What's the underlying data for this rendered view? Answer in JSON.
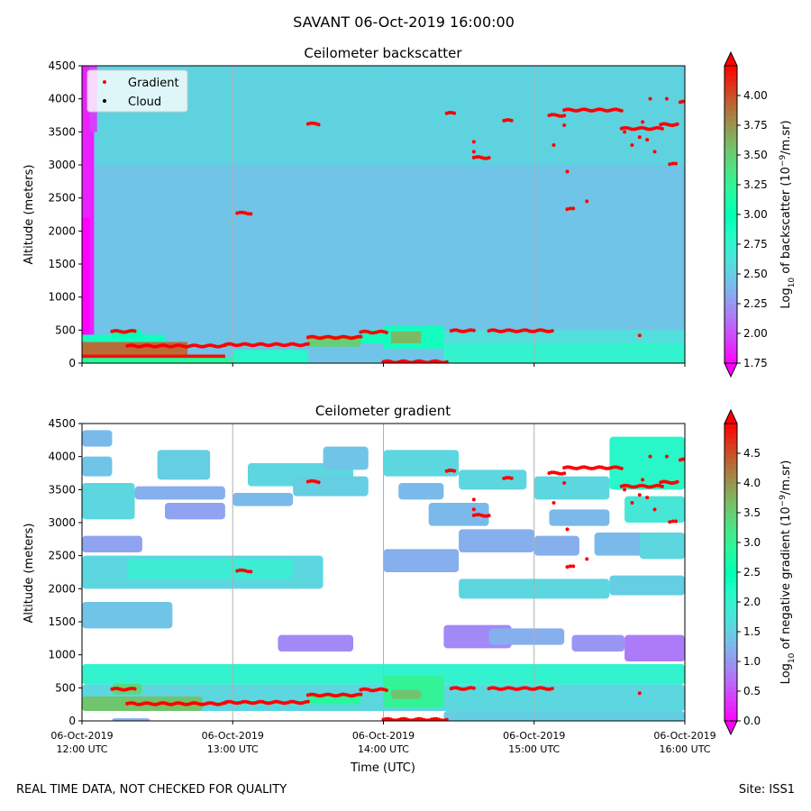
{
  "title": "SAVANT 06-Oct-2019 16:00:00",
  "footer": {
    "left": "REAL TIME DATA, NOT CHECKED FOR QUALITY",
    "right": "Site: ISS1"
  },
  "xlabel": "Time (UTC)",
  "x_ticks": [
    {
      "date": "06-Oct-2019",
      "time": "12:00 UTC",
      "hour": 12
    },
    {
      "date": "06-Oct-2019",
      "time": "13:00 UTC",
      "hour": 13
    },
    {
      "date": "06-Oct-2019",
      "time": "14:00 UTC",
      "hour": 14
    },
    {
      "date": "06-Oct-2019",
      "time": "15:00 UTC",
      "hour": 15
    },
    {
      "date": "06-Oct-2019",
      "time": "16:00 UTC",
      "hour": 16
    }
  ],
  "legend": {
    "placement": "upper-left",
    "entries": [
      {
        "label": "Gradient",
        "color": "#ff0000"
      },
      {
        "label": "Cloud",
        "color": "#000000"
      }
    ]
  },
  "chart_data": [
    {
      "type": "heatmap",
      "title": "Ceilometer backscatter",
      "ylabel": "Altitude (meters)",
      "xlim": [
        12,
        16
      ],
      "ylim": [
        0,
        4500
      ],
      "y_ticks": [
        0,
        500,
        1000,
        1500,
        2000,
        2500,
        3000,
        3500,
        4000,
        4500
      ],
      "grid": "vertical",
      "colorbar": {
        "label_prefix": "Log",
        "label_sub": "10",
        "label_mid": " of backscatter (10",
        "label_exp": "−9",
        "label_suffix": "/m.sr)",
        "range": [
          1.75,
          4.25
        ],
        "ticks": [
          "1.75",
          "2.00",
          "2.25",
          "2.50",
          "2.75",
          "3.00",
          "3.25",
          "3.50",
          "3.75",
          "4.00"
        ],
        "colormap": "rainbow"
      },
      "field": {
        "background_value": 2.45,
        "upper_value": 2.6,
        "blobs": [
          {
            "t0": 12.0,
            "t1": 12.08,
            "h0": 0,
            "h1": 4500,
            "v": 1.85
          },
          {
            "t0": 12.0,
            "t1": 12.05,
            "h0": 0,
            "h1": 2200,
            "v": 1.75
          },
          {
            "t0": 12.05,
            "t1": 12.1,
            "h0": 3500,
            "h1": 4500,
            "v": 1.95
          },
          {
            "t0": 12.0,
            "t1": 12.95,
            "h0": 0,
            "h1": 130,
            "v": 4.2
          },
          {
            "t0": 12.0,
            "t1": 12.7,
            "h0": 130,
            "h1": 320,
            "v": 3.9
          },
          {
            "t0": 12.0,
            "t1": 12.55,
            "h0": 320,
            "h1": 430,
            "v": 2.9
          },
          {
            "t0": 12.2,
            "t1": 12.4,
            "h0": 360,
            "h1": 500,
            "v": 2.95
          },
          {
            "t0": 12.0,
            "t1": 13.3,
            "h0": 0,
            "h1": 80,
            "v": 3.2
          },
          {
            "t0": 13.0,
            "t1": 13.5,
            "h0": 0,
            "h1": 200,
            "v": 2.8
          },
          {
            "t0": 13.5,
            "t1": 13.85,
            "h0": 250,
            "h1": 420,
            "v": 3.5
          },
          {
            "t0": 13.85,
            "t1": 14.0,
            "h0": 300,
            "h1": 500,
            "v": 2.9
          },
          {
            "t0": 14.0,
            "t1": 14.4,
            "h0": 220,
            "h1": 560,
            "v": 2.9
          },
          {
            "t0": 14.05,
            "t1": 14.25,
            "h0": 300,
            "h1": 480,
            "v": 3.6
          },
          {
            "t0": 14.4,
            "t1": 16.0,
            "h0": 0,
            "h1": 300,
            "v": 2.75
          },
          {
            "t0": 14.4,
            "t1": 16.0,
            "h0": 300,
            "h1": 500,
            "v": 2.6
          }
        ]
      },
      "gradient_points": [
        {
          "t": [
            12.2,
            12.35
          ],
          "h": 480
        },
        {
          "t": [
            12.3,
            12.95
          ],
          "h": 260
        },
        {
          "t": [
            12.95,
            13.5
          ],
          "h": 280
        },
        {
          "t": [
            13.5,
            13.85
          ],
          "h": 390
        },
        {
          "t": [
            13.85,
            14.02
          ],
          "h": 470
        },
        {
          "t": [
            14.0,
            14.42
          ],
          "h": 20
        },
        {
          "t": [
            14.45,
            14.6
          ],
          "h": 490
        },
        {
          "t": [
            14.7,
            15.12
          ],
          "h": 490
        },
        {
          "t": [
            13.5,
            13.57
          ],
          "h": 3620
        },
        {
          "t": [
            13.03,
            13.12
          ],
          "h": 2270
        },
        {
          "t": [
            14.42,
            14.47
          ],
          "h": 3780
        },
        {
          "t": [
            14.6,
            14.7
          ],
          "h": 3110
        },
        {
          "t": [
            14.8,
            14.85
          ],
          "h": 3670
        },
        {
          "t": [
            15.1,
            15.2
          ],
          "h": 3750
        },
        {
          "t": [
            15.2,
            15.58
          ],
          "h": 3830
        },
        {
          "t": [
            15.58,
            15.85
          ],
          "h": 3550
        },
        {
          "t": [
            15.84,
            15.95
          ],
          "h": 3610
        },
        {
          "t": [
            15.97,
            16.0
          ],
          "h": 3950
        },
        {
          "t": [
            15.22,
            15.26
          ],
          "h": 2330
        },
        {
          "t": [
            15.9,
            15.94
          ],
          "h": 3010
        }
      ],
      "gradient_scatter": [
        [
          14.6,
          3350
        ],
        [
          14.6,
          3200
        ],
        [
          15.13,
          3300
        ],
        [
          15.2,
          3600
        ],
        [
          15.22,
          2900
        ],
        [
          15.35,
          2450
        ],
        [
          15.6,
          3500
        ],
        [
          15.65,
          3300
        ],
        [
          15.7,
          3420
        ],
        [
          15.75,
          3380
        ],
        [
          15.8,
          3200
        ],
        [
          15.72,
          3650
        ],
        [
          15.88,
          4000
        ],
        [
          15.77,
          4000
        ],
        [
          15.7,
          420
        ]
      ]
    },
    {
      "type": "heatmap",
      "title": "Ceilometer gradient",
      "ylabel": "Altitude (meters)",
      "xlim": [
        12,
        16
      ],
      "ylim": [
        0,
        4500
      ],
      "y_ticks": [
        0,
        500,
        1000,
        1500,
        2000,
        2500,
        3000,
        3500,
        4000,
        4500
      ],
      "grid": "vertical",
      "colorbar": {
        "label_prefix": "Log",
        "label_sub": "10",
        "label_mid": " of negative gradient (10",
        "label_exp": "−9",
        "label_suffix": "/m.sr)",
        "range": [
          0.0,
          5.0
        ],
        "ticks": [
          "0.0",
          "0.5",
          "1.0",
          "1.5",
          "2.0",
          "2.5",
          "3.0",
          "3.5",
          "4.0",
          "4.5"
        ],
        "colormap": "rainbow"
      },
      "bands": [
        {
          "t0": 12.0,
          "t1": 12.35,
          "h0": 3050,
          "h1": 3600,
          "v": 1.6
        },
        {
          "t0": 12.0,
          "t1": 12.2,
          "h0": 3700,
          "h1": 4000,
          "v": 1.4
        },
        {
          "t0": 12.0,
          "t1": 12.2,
          "h0": 4150,
          "h1": 4400,
          "v": 1.3
        },
        {
          "t0": 12.5,
          "t1": 12.85,
          "h0": 3650,
          "h1": 4100,
          "v": 1.5
        },
        {
          "t0": 12.35,
          "t1": 12.95,
          "h0": 3350,
          "h1": 3550,
          "v": 1.2
        },
        {
          "t0": 12.55,
          "t1": 12.95,
          "h0": 3050,
          "h1": 3300,
          "v": 1.1
        },
        {
          "t0": 12.0,
          "t1": 12.4,
          "h0": 2550,
          "h1": 2800,
          "v": 1.1
        },
        {
          "t0": 12.0,
          "t1": 13.6,
          "h0": 2000,
          "h1": 2500,
          "v": 1.6
        },
        {
          "t0": 12.3,
          "t1": 13.4,
          "h0": 2150,
          "h1": 2450,
          "v": 1.9
        },
        {
          "t0": 13.1,
          "t1": 13.8,
          "h0": 3550,
          "h1": 3900,
          "v": 1.6
        },
        {
          "t0": 13.0,
          "t1": 13.4,
          "h0": 3250,
          "h1": 3450,
          "v": 1.3
        },
        {
          "t0": 13.4,
          "t1": 13.9,
          "h0": 3400,
          "h1": 3700,
          "v": 1.5
        },
        {
          "t0": 13.6,
          "t1": 13.9,
          "h0": 3800,
          "h1": 4150,
          "v": 1.4
        },
        {
          "t0": 14.0,
          "t1": 14.5,
          "h0": 3700,
          "h1": 4100,
          "v": 1.6
        },
        {
          "t0": 14.1,
          "t1": 14.4,
          "h0": 3350,
          "h1": 3600,
          "v": 1.3
        },
        {
          "t0": 14.5,
          "t1": 14.95,
          "h0": 3500,
          "h1": 3800,
          "v": 1.6
        },
        {
          "t0": 14.3,
          "t1": 14.7,
          "h0": 2950,
          "h1": 3300,
          "v": 1.3
        },
        {
          "t0": 14.0,
          "t1": 14.5,
          "h0": 2250,
          "h1": 2600,
          "v": 1.2
        },
        {
          "t0": 14.5,
          "t1": 15.0,
          "h0": 2550,
          "h1": 2900,
          "v": 1.2
        },
        {
          "t0": 14.5,
          "t1": 15.5,
          "h0": 1850,
          "h1": 2150,
          "v": 1.6
        },
        {
          "t0": 15.0,
          "t1": 15.5,
          "h0": 3350,
          "h1": 3700,
          "v": 1.6
        },
        {
          "t0": 15.1,
          "t1": 15.5,
          "h0": 2950,
          "h1": 3200,
          "v": 1.3
        },
        {
          "t0": 15.0,
          "t1": 15.3,
          "h0": 2500,
          "h1": 2800,
          "v": 1.2
        },
        {
          "t0": 15.5,
          "t1": 16.0,
          "h0": 3500,
          "h1": 4300,
          "v": 2.1
        },
        {
          "t0": 15.6,
          "t1": 16.0,
          "h0": 3000,
          "h1": 3400,
          "v": 1.8
        },
        {
          "t0": 15.4,
          "t1": 15.8,
          "h0": 2500,
          "h1": 2850,
          "v": 1.3
        },
        {
          "t0": 15.7,
          "t1": 16.0,
          "h0": 2450,
          "h1": 2850,
          "v": 1.6
        },
        {
          "t0": 15.5,
          "t1": 16.0,
          "h0": 1900,
          "h1": 2200,
          "v": 1.5
        },
        {
          "t0": 12.0,
          "t1": 12.6,
          "h0": 1400,
          "h1": 1800,
          "v": 1.4
        },
        {
          "t0": 13.3,
          "t1": 13.8,
          "h0": 1050,
          "h1": 1300,
          "v": 0.9
        },
        {
          "t0": 14.4,
          "t1": 14.85,
          "h0": 1100,
          "h1": 1450,
          "v": 0.9
        },
        {
          "t0": 14.7,
          "t1": 15.2,
          "h0": 1150,
          "h1": 1400,
          "v": 1.2
        },
        {
          "t0": 15.25,
          "t1": 15.6,
          "h0": 1050,
          "h1": 1300,
          "v": 1.0
        },
        {
          "t0": 15.6,
          "t1": 16.0,
          "h0": 900,
          "h1": 1300,
          "v": 0.8
        },
        {
          "t0": 12.0,
          "t1": 16.0,
          "h0": 550,
          "h1": 860,
          "v": 2.0
        },
        {
          "t0": 12.0,
          "t1": 16.0,
          "h0": 150,
          "h1": 550,
          "v": 1.6
        },
        {
          "t0": 12.0,
          "t1": 12.8,
          "h0": 150,
          "h1": 370,
          "v": 3.6
        },
        {
          "t0": 12.2,
          "t1": 12.4,
          "h0": 400,
          "h1": 560,
          "v": 3.4
        },
        {
          "t0": 13.5,
          "t1": 13.85,
          "h0": 250,
          "h1": 420,
          "v": 2.9
        },
        {
          "t0": 14.0,
          "t1": 14.4,
          "h0": 200,
          "h1": 680,
          "v": 3.0
        },
        {
          "t0": 14.05,
          "t1": 14.25,
          "h0": 330,
          "h1": 470,
          "v": 3.6
        },
        {
          "t0": 14.4,
          "t1": 16.0,
          "h0": 0,
          "h1": 150,
          "v": 1.5
        },
        {
          "t0": 12.2,
          "t1": 12.45,
          "h0": 0,
          "h1": 40,
          "v": 1.2
        }
      ]
    }
  ]
}
